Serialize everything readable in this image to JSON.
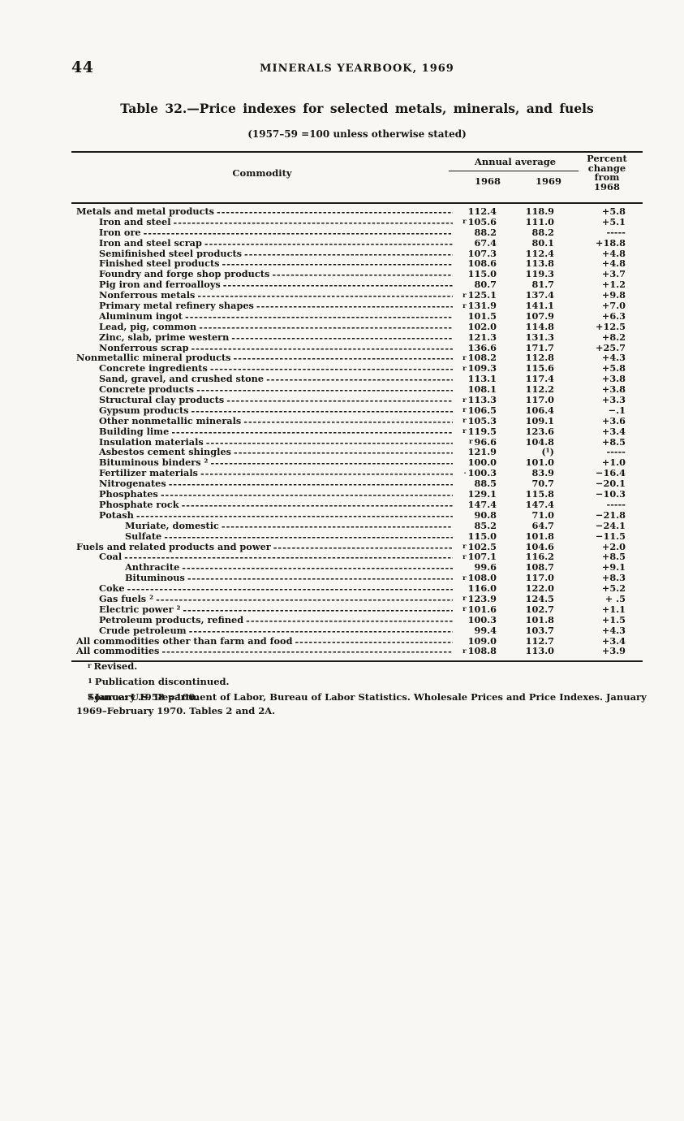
{
  "page": {
    "number": "44",
    "running_head": "MINERALS YEARBOOK, 1969"
  },
  "table": {
    "title": "Table 32.—Price indexes for selected metals, minerals, and fuels",
    "subtitle": "(1957–59 =100 unless otherwise stated)",
    "header": {
      "commodity": "Commodity",
      "annual_average": "Annual average",
      "year1": "1968",
      "year2": "1969",
      "percent_change_lines": [
        "Percent",
        "change",
        "from",
        "1968"
      ]
    },
    "rows": [
      {
        "indent": 0,
        "label": "Metals and metal products",
        "mark": "",
        "v1968": "112.4",
        "v1969": "118.9",
        "pct": "+5.8"
      },
      {
        "indent": 1,
        "label": "Iron and steel",
        "mark": "r",
        "v1968": "105.6",
        "v1969": "111.0",
        "pct": "+5.1"
      },
      {
        "indent": 1,
        "label": "Iron ore",
        "mark": "",
        "v1968": "88.2",
        "v1969": "88.2",
        "pct": "-----"
      },
      {
        "indent": 1,
        "label": "Iron and steel scrap",
        "mark": "",
        "v1968": "67.4",
        "v1969": "80.1",
        "pct": "+18.8"
      },
      {
        "indent": 1,
        "label": "Semifinished steel products",
        "mark": "",
        "v1968": "107.3",
        "v1969": "112.4",
        "pct": "+4.8"
      },
      {
        "indent": 1,
        "label": "Finished steel products",
        "mark": "",
        "v1968": "108.6",
        "v1969": "113.8",
        "pct": "+4.8"
      },
      {
        "indent": 1,
        "label": "Foundry and forge shop products",
        "mark": "",
        "v1968": "115.0",
        "v1969": "119.3",
        "pct": "+3.7"
      },
      {
        "indent": 1,
        "label": "Pig iron and ferroalloys",
        "mark": "",
        "v1968": "80.7",
        "v1969": "81.7",
        "pct": "+1.2"
      },
      {
        "indent": 1,
        "label": "Nonferrous metals",
        "mark": "r",
        "v1968": "125.1",
        "v1969": "137.4",
        "pct": "+9.8"
      },
      {
        "indent": 1,
        "label": "Primary metal refinery shapes",
        "mark": "r",
        "v1968": "131.9",
        "v1969": "141.1",
        "pct": "+7.0"
      },
      {
        "indent": 1,
        "label": "Aluminum ingot",
        "mark": "",
        "v1968": "101.5",
        "v1969": "107.9",
        "pct": "+6.3"
      },
      {
        "indent": 1,
        "label": "Lead, pig, common",
        "mark": "",
        "v1968": "102.0",
        "v1969": "114.8",
        "pct": "+12.5"
      },
      {
        "indent": 1,
        "label": "Zinc, slab, prime western",
        "mark": "",
        "v1968": "121.3",
        "v1969": "131.3",
        "pct": "+8.2"
      },
      {
        "indent": 1,
        "label": "Nonferrous scrap",
        "mark": "",
        "v1968": "136.6",
        "v1969": "171.7",
        "pct": "+25.7"
      },
      {
        "indent": 0,
        "label": "Nonmetallic mineral products",
        "mark": "r",
        "v1968": "108.2",
        "v1969": "112.8",
        "pct": "+4.3"
      },
      {
        "indent": 1,
        "label": "Concrete ingredients",
        "mark": "r",
        "v1968": "109.3",
        "v1969": "115.6",
        "pct": "+5.8"
      },
      {
        "indent": 1,
        "label": "Sand, gravel, and crushed stone",
        "mark": "",
        "v1968": "113.1",
        "v1969": "117.4",
        "pct": "+3.8"
      },
      {
        "indent": 1,
        "label": "Concrete products",
        "mark": "",
        "v1968": "108.1",
        "v1969": "112.2",
        "pct": "+3.8"
      },
      {
        "indent": 1,
        "label": "Structural clay products",
        "mark": "r",
        "v1968": "113.3",
        "v1969": "117.0",
        "pct": "+3.3"
      },
      {
        "indent": 1,
        "label": "Gypsum products",
        "mark": "r",
        "v1968": "106.5",
        "v1969": "106.4",
        "pct": "−.1"
      },
      {
        "indent": 1,
        "label": "Other nonmetallic minerals",
        "mark": "r",
        "v1968": "105.3",
        "v1969": "109.1",
        "pct": "+3.6"
      },
      {
        "indent": 1,
        "label": "Building lime",
        "mark": "r",
        "v1968": "119.5",
        "v1969": "123.6",
        "pct": "+3.4"
      },
      {
        "indent": 1,
        "label": "Insulation materials",
        "mark": "r",
        "v1968": "96.6",
        "v1969": "104.8",
        "pct": "+8.5"
      },
      {
        "indent": 1,
        "label": "Asbestos cement shingles",
        "mark": "",
        "v1968": "121.9",
        "v1969": "(¹)",
        "pct": "-----"
      },
      {
        "indent": 1,
        "label": "Bituminous binders ²",
        "mark": "",
        "v1968": "100.0",
        "v1969": "101.0",
        "pct": "+1.0"
      },
      {
        "indent": 1,
        "label": "Fertilizer materials",
        "mark": "·",
        "v1968": "100.3",
        "v1969": "83.9",
        "pct": "−16.4"
      },
      {
        "indent": 1,
        "label": "Nitrogenates",
        "mark": "",
        "v1968": "88.5",
        "v1969": "70.7",
        "pct": "−20.1"
      },
      {
        "indent": 1,
        "label": "Phosphates",
        "mark": "",
        "v1968": "129.1",
        "v1969": "115.8",
        "pct": "−10.3"
      },
      {
        "indent": 1,
        "label": "Phosphate rock",
        "mark": "",
        "v1968": "147.4",
        "v1969": "147.4",
        "pct": "-----"
      },
      {
        "indent": 1,
        "label": "Potash",
        "mark": "",
        "v1968": "90.8",
        "v1969": "71.0",
        "pct": "−21.8"
      },
      {
        "indent": 2,
        "label": "Muriate, domestic",
        "mark": "",
        "v1968": "85.2",
        "v1969": "64.7",
        "pct": "−24.1"
      },
      {
        "indent": 2,
        "label": "Sulfate",
        "mark": "",
        "v1968": "115.0",
        "v1969": "101.8",
        "pct": "−11.5"
      },
      {
        "indent": 0,
        "label": "Fuels and related products and power",
        "mark": "r",
        "v1968": "102.5",
        "v1969": "104.6",
        "pct": "+2.0"
      },
      {
        "indent": 1,
        "label": "Coal",
        "mark": "r",
        "v1968": "107.1",
        "v1969": "116.2",
        "pct": "+8.5"
      },
      {
        "indent": 2,
        "label": "Anthracite",
        "mark": "",
        "v1968": "99.6",
        "v1969": "108.7",
        "pct": "+9.1"
      },
      {
        "indent": 2,
        "label": "Bituminous",
        "mark": "r",
        "v1968": "108.0",
        "v1969": "117.0",
        "pct": "+8.3"
      },
      {
        "indent": 1,
        "label": "Coke",
        "mark": "",
        "v1968": "116.0",
        "v1969": "122.0",
        "pct": "+5.2"
      },
      {
        "indent": 1,
        "label": "Gas fuels ²",
        "mark": "r",
        "v1968": "123.9",
        "v1969": "124.5",
        "pct": "+ .5"
      },
      {
        "indent": 1,
        "label": "Electric power ²",
        "mark": "r",
        "v1968": "101.6",
        "v1969": "102.7",
        "pct": "+1.1"
      },
      {
        "indent": 1,
        "label": "Petroleum products, refined",
        "mark": "",
        "v1968": "100.3",
        "v1969": "101.8",
        "pct": "+1.5"
      },
      {
        "indent": 1,
        "label": "Crude petroleum",
        "mark": "",
        "v1968": "99.4",
        "v1969": "103.7",
        "pct": "+4.3"
      },
      {
        "indent": 0,
        "label": "All commodities other than farm and food",
        "mark": "",
        "v1968": "109.0",
        "v1969": "112.7",
        "pct": "+3.4"
      },
      {
        "indent": 0,
        "label": "All commodities",
        "mark": "r",
        "v1968": "108.8",
        "v1969": "113.0",
        "pct": "+3.9"
      }
    ]
  },
  "footnotes": [
    {
      "mark": "r",
      "text": "Revised."
    },
    {
      "mark": "1",
      "text": "Publication discontinued."
    },
    {
      "mark": "2",
      "text": "January 1958 =100."
    }
  ],
  "source": {
    "line1": "Source: U.S. Department of Labor, Bureau of Labor Statistics. Wholesale Prices and Price Indexes. January",
    "line2": "1969–February 1970. Tables 2 and 2A."
  }
}
